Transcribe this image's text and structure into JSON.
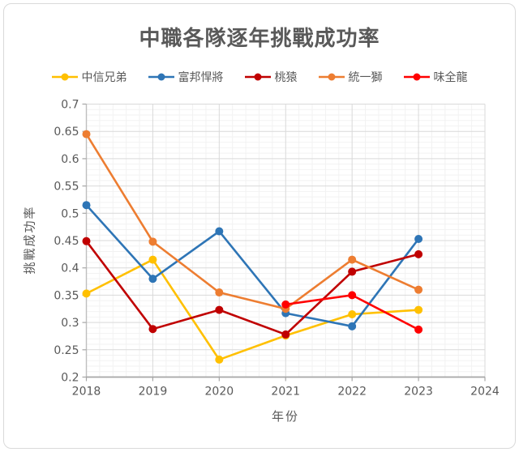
{
  "chart_data": {
    "type": "line",
    "title": "中職各隊逐年挑戰成功率",
    "xlabel": "年份",
    "ylabel": "挑戰成功率",
    "x_ticks": [
      2018,
      2019,
      2020,
      2021,
      2022,
      2023,
      2024
    ],
    "y_ticks": [
      0.2,
      0.25,
      0.3,
      0.35,
      0.4,
      0.45,
      0.5,
      0.55,
      0.6,
      0.65,
      0.7
    ],
    "xlim": [
      2018,
      2024
    ],
    "ylim": [
      0.2,
      0.7
    ],
    "y_minor_step": 0.01,
    "x_minor_step": 0.2,
    "grid": true,
    "legend_position": "top",
    "colors": {
      "major_grid": "#d9d9d9",
      "minor_grid": "#f2f2f2",
      "axis": "#bfbfbf",
      "tick": "#a6a6a6",
      "text": "#595959"
    },
    "series": [
      {
        "name": "中信兄弟",
        "color": "#FFC000",
        "x": [
          2018,
          2019,
          2020,
          2021,
          2022,
          2023
        ],
        "y": [
          0.353,
          0.415,
          0.232,
          0.276,
          0.315,
          0.323
        ]
      },
      {
        "name": "富邦悍將",
        "color": "#2E75B6",
        "x": [
          2018,
          2019,
          2020,
          2021,
          2022,
          2023
        ],
        "y": [
          0.515,
          0.38,
          0.467,
          0.317,
          0.293,
          0.453
        ]
      },
      {
        "name": "桃猿",
        "color": "#C00000",
        "x": [
          2018,
          2019,
          2020,
          2021,
          2022,
          2023
        ],
        "y": [
          0.449,
          0.288,
          0.323,
          0.278,
          0.393,
          0.425
        ]
      },
      {
        "name": "統一獅",
        "color": "#ED7D31",
        "x": [
          2018,
          2019,
          2020,
          2021,
          2022,
          2023
        ],
        "y": [
          0.645,
          0.448,
          0.355,
          0.325,
          0.415,
          0.36
        ]
      },
      {
        "name": "味全龍",
        "color": "#FF0000",
        "x": [
          2021,
          2022,
          2023
        ],
        "y": [
          0.333,
          0.35,
          0.287
        ]
      }
    ]
  }
}
